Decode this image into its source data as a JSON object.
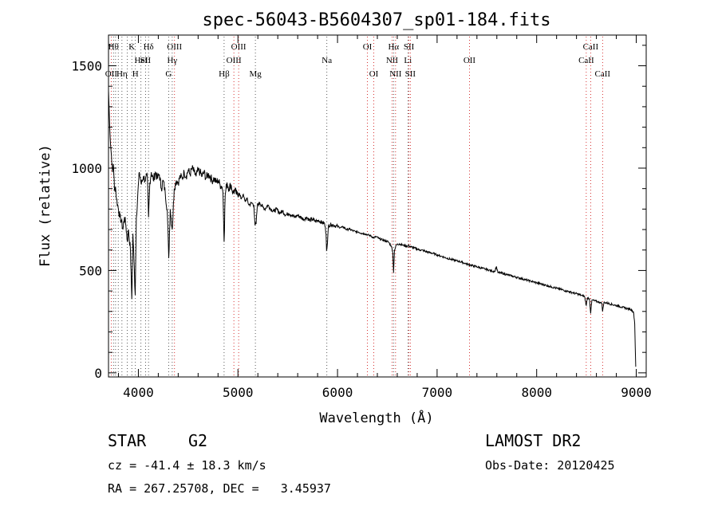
{
  "chart_data": {
    "type": "line",
    "title": "spec-56043-B5604307_sp01-184.fits",
    "xlabel": "Wavelength (Å)",
    "ylabel": "Flux (relative)",
    "xlim": [
      3700,
      9100
    ],
    "ylim": [
      -20,
      1650
    ],
    "xticks": [
      4000,
      5000,
      6000,
      7000,
      8000,
      9000
    ],
    "yticks": [
      0,
      500,
      1000,
      1500
    ],
    "grid": false,
    "series": [
      {
        "points": [
          [
            3700,
            1380
          ],
          [
            3710,
            1240
          ],
          [
            3720,
            1120
          ],
          [
            3730,
            1060
          ],
          [
            3740,
            980
          ],
          [
            3750,
            1020
          ],
          [
            3760,
            890
          ],
          [
            3770,
            910
          ],
          [
            3780,
            850
          ],
          [
            3800,
            800
          ],
          [
            3815,
            760
          ],
          [
            3830,
            740
          ],
          [
            3845,
            700
          ],
          [
            3860,
            760
          ],
          [
            3875,
            720
          ],
          [
            3890,
            640
          ],
          [
            3900,
            700
          ],
          [
            3920,
            600
          ],
          [
            3934,
            360
          ],
          [
            3945,
            680
          ],
          [
            3955,
            560
          ],
          [
            3968,
            380
          ],
          [
            3980,
            760
          ],
          [
            3995,
            880
          ],
          [
            4010,
            980
          ],
          [
            4030,
            920
          ],
          [
            4050,
            960
          ],
          [
            4070,
            940
          ],
          [
            4090,
            960
          ],
          [
            4102,
            760
          ],
          [
            4115,
            930
          ],
          [
            4130,
            980
          ],
          [
            4150,
            940
          ],
          [
            4170,
            980
          ],
          [
            4190,
            950
          ],
          [
            4210,
            970
          ],
          [
            4230,
            900
          ],
          [
            4250,
            940
          ],
          [
            4270,
            880
          ],
          [
            4290,
            800
          ],
          [
            4305,
            560
          ],
          [
            4320,
            800
          ],
          [
            4340,
            700
          ],
          [
            4360,
            900
          ],
          [
            4380,
            940
          ],
          [
            4400,
            930
          ],
          [
            4420,
            960
          ],
          [
            4440,
            950
          ],
          [
            4460,
            980
          ],
          [
            4480,
            960
          ],
          [
            4500,
            990
          ],
          [
            4520,
            970
          ],
          [
            4540,
            1000
          ],
          [
            4560,
            980
          ],
          [
            4580,
            960
          ],
          [
            4600,
            990
          ],
          [
            4620,
            980
          ],
          [
            4640,
            960
          ],
          [
            4660,
            980
          ],
          [
            4680,
            950
          ],
          [
            4700,
            970
          ],
          [
            4720,
            960
          ],
          [
            4740,
            940
          ],
          [
            4760,
            950
          ],
          [
            4780,
            930
          ],
          [
            4800,
            940
          ],
          [
            4820,
            920
          ],
          [
            4840,
            910
          ],
          [
            4850,
            880
          ],
          [
            4861,
            640
          ],
          [
            4872,
            870
          ],
          [
            4890,
            930
          ],
          [
            4910,
            900
          ],
          [
            4930,
            920
          ],
          [
            4950,
            880
          ],
          [
            4970,
            890
          ],
          [
            4990,
            870
          ],
          [
            5010,
            880
          ],
          [
            5030,
            850
          ],
          [
            5050,
            870
          ],
          [
            5070,
            840
          ],
          [
            5090,
            850
          ],
          [
            5110,
            820
          ],
          [
            5140,
            830
          ],
          [
            5160,
            820
          ],
          [
            5172,
            720
          ],
          [
            5183,
            730
          ],
          [
            5195,
            820
          ],
          [
            5220,
            830
          ],
          [
            5250,
            810
          ],
          [
            5270,
            800
          ],
          [
            5300,
            820
          ],
          [
            5330,
            800
          ],
          [
            5360,
            790
          ],
          [
            5390,
            800
          ],
          [
            5420,
            780
          ],
          [
            5450,
            790
          ],
          [
            5480,
            770
          ],
          [
            5510,
            780
          ],
          [
            5540,
            770
          ],
          [
            5570,
            760
          ],
          [
            5600,
            770
          ],
          [
            5630,
            760
          ],
          [
            5660,
            750
          ],
          [
            5690,
            760
          ],
          [
            5720,
            745
          ],
          [
            5750,
            750
          ],
          [
            5780,
            740
          ],
          [
            5810,
            745
          ],
          [
            5840,
            735
          ],
          [
            5870,
            730
          ],
          [
            5885,
            680
          ],
          [
            5890,
            600
          ],
          [
            5896,
            620
          ],
          [
            5910,
            720
          ],
          [
            5940,
            725
          ],
          [
            5970,
            720
          ],
          [
            6000,
            715
          ],
          [
            6030,
            710
          ],
          [
            6060,
            712
          ],
          [
            6090,
            700
          ],
          [
            6120,
            702
          ],
          [
            6150,
            695
          ],
          [
            6180,
            690
          ],
          [
            6210,
            688
          ],
          [
            6240,
            682
          ],
          [
            6270,
            680
          ],
          [
            6300,
            675
          ],
          [
            6330,
            670
          ],
          [
            6360,
            660
          ],
          [
            6390,
            665
          ],
          [
            6420,
            655
          ],
          [
            6450,
            650
          ],
          [
            6480,
            645
          ],
          [
            6510,
            640
          ],
          [
            6540,
            620
          ],
          [
            6555,
            590
          ],
          [
            6563,
            490
          ],
          [
            6572,
            600
          ],
          [
            6590,
            625
          ],
          [
            6620,
            630
          ],
          [
            6650,
            625
          ],
          [
            6680,
            620
          ],
          [
            6710,
            620
          ],
          [
            6740,
            615
          ],
          [
            6770,
            610
          ],
          [
            6800,
            605
          ],
          [
            6830,
            600
          ],
          [
            6860,
            598
          ],
          [
            6890,
            592
          ],
          [
            6920,
            588
          ],
          [
            6950,
            585
          ],
          [
            6980,
            580
          ],
          [
            7010,
            575
          ],
          [
            7040,
            570
          ],
          [
            7070,
            565
          ],
          [
            7100,
            560
          ],
          [
            7130,
            556
          ],
          [
            7160,
            552
          ],
          [
            7190,
            548
          ],
          [
            7220,
            545
          ],
          [
            7250,
            540
          ],
          [
            7280,
            535
          ],
          [
            7310,
            530
          ],
          [
            7340,
            526
          ],
          [
            7370,
            522
          ],
          [
            7400,
            518
          ],
          [
            7430,
            514
          ],
          [
            7460,
            510
          ],
          [
            7490,
            506
          ],
          [
            7520,
            502
          ],
          [
            7550,
            498
          ],
          [
            7580,
            495
          ],
          [
            7595,
            520
          ],
          [
            7610,
            490
          ],
          [
            7640,
            488
          ],
          [
            7670,
            484
          ],
          [
            7700,
            480
          ],
          [
            7730,
            476
          ],
          [
            7760,
            472
          ],
          [
            7790,
            468
          ],
          [
            7820,
            464
          ],
          [
            7850,
            460
          ],
          [
            7880,
            456
          ],
          [
            7910,
            452
          ],
          [
            7940,
            448
          ],
          [
            7970,
            444
          ],
          [
            8000,
            440
          ],
          [
            8030,
            436
          ],
          [
            8060,
            432
          ],
          [
            8090,
            428
          ],
          [
            8120,
            424
          ],
          [
            8150,
            420
          ],
          [
            8180,
            416
          ],
          [
            8210,
            412
          ],
          [
            8240,
            408
          ],
          [
            8270,
            404
          ],
          [
            8300,
            400
          ],
          [
            8330,
            396
          ],
          [
            8360,
            392
          ],
          [
            8390,
            388
          ],
          [
            8420,
            384
          ],
          [
            8450,
            378
          ],
          [
            8480,
            374
          ],
          [
            8498,
            330
          ],
          [
            8510,
            368
          ],
          [
            8530,
            362
          ],
          [
            8542,
            290
          ],
          [
            8555,
            356
          ],
          [
            8580,
            352
          ],
          [
            8610,
            348
          ],
          [
            8640,
            344
          ],
          [
            8655,
            340
          ],
          [
            8662,
            300
          ],
          [
            8675,
            344
          ],
          [
            8700,
            342
          ],
          [
            8730,
            338
          ],
          [
            8760,
            334
          ],
          [
            8790,
            330
          ],
          [
            8820,
            326
          ],
          [
            8850,
            322
          ],
          [
            8880,
            318
          ],
          [
            8910,
            314
          ],
          [
            8940,
            310
          ],
          [
            8960,
            305
          ],
          [
            8975,
            290
          ],
          [
            8985,
            240
          ],
          [
            8990,
            120
          ],
          [
            8995,
            30
          ]
        ]
      }
    ],
    "line_markers": [
      {
        "wl": 3727,
        "label": "OII",
        "row": 3,
        "color": "#cc0000"
      },
      {
        "wl": 3750,
        "label": "Hθ",
        "row": 1,
        "color": "#333333"
      },
      {
        "wl": 3771,
        "label": "",
        "row": 0,
        "color": "#333333"
      },
      {
        "wl": 3798,
        "label": "",
        "row": 0,
        "color": "#333333"
      },
      {
        "wl": 3835,
        "label": "Hη",
        "row": 3,
        "color": "#333333"
      },
      {
        "wl": 3889,
        "label": "",
        "row": 0,
        "color": "#333333"
      },
      {
        "wl": 3934,
        "label": "K",
        "row": 1,
        "color": "#333333"
      },
      {
        "wl": 3970,
        "label": "H",
        "row": 3,
        "color": "#333333"
      },
      {
        "wl": 4026,
        "label": "HeI",
        "row": 2,
        "color": "#333333"
      },
      {
        "wl": 4072,
        "label": "SII",
        "row": 2,
        "color": "#333333"
      },
      {
        "wl": 4102,
        "label": "Hδ",
        "row": 1,
        "color": "#333333"
      },
      {
        "wl": 4304,
        "label": "G",
        "row": 3,
        "color": "#333333"
      },
      {
        "wl": 4340,
        "label": "Hγ",
        "row": 2,
        "color": "#333333"
      },
      {
        "wl": 4363,
        "label": "OIII",
        "row": 1,
        "color": "#cc0000"
      },
      {
        "wl": 4861,
        "label": "Hβ",
        "row": 3,
        "color": "#333333"
      },
      {
        "wl": 4959,
        "label": "OIII",
        "row": 2,
        "color": "#cc0000"
      },
      {
        "wl": 5007,
        "label": "OIII",
        "row": 1,
        "color": "#cc0000"
      },
      {
        "wl": 5175,
        "label": "Mg",
        "row": 3,
        "color": "#333333"
      },
      {
        "wl": 5893,
        "label": "Na",
        "row": 2,
        "color": "#333333"
      },
      {
        "wl": 6300,
        "label": "OI",
        "row": 1,
        "color": "#cc0000"
      },
      {
        "wl": 6364,
        "label": "OI",
        "row": 3,
        "color": "#cc0000"
      },
      {
        "wl": 6548,
        "label": "NII",
        "row": 2,
        "color": "#cc0000"
      },
      {
        "wl": 6563,
        "label": "Hα",
        "row": 1,
        "color": "#333333"
      },
      {
        "wl": 6583,
        "label": "NII",
        "row": 3,
        "color": "#cc0000"
      },
      {
        "wl": 6707,
        "label": "Li",
        "row": 2,
        "color": "#333333"
      },
      {
        "wl": 6717,
        "label": "SII",
        "row": 1,
        "color": "#cc0000"
      },
      {
        "wl": 6731,
        "label": "SII",
        "row": 3,
        "color": "#cc0000"
      },
      {
        "wl": 7325,
        "label": "OII",
        "row": 2,
        "color": "#cc0000"
      },
      {
        "wl": 8498,
        "label": "CaII",
        "row": 2,
        "color": "#cc0000"
      },
      {
        "wl": 8542,
        "label": "CaII",
        "row": 1,
        "color": "#cc0000"
      },
      {
        "wl": 8662,
        "label": "CaII",
        "row": 3,
        "color": "#cc0000"
      }
    ]
  },
  "info": {
    "object_class": "STAR",
    "subclass": "G2",
    "survey": "LAMOST DR2",
    "redshift": "cz = -41.4 ± 18.3 km/s",
    "obs_date": "Obs-Date: 20120425",
    "coords": "RA = 267.25708, DEC =   3.45937"
  }
}
